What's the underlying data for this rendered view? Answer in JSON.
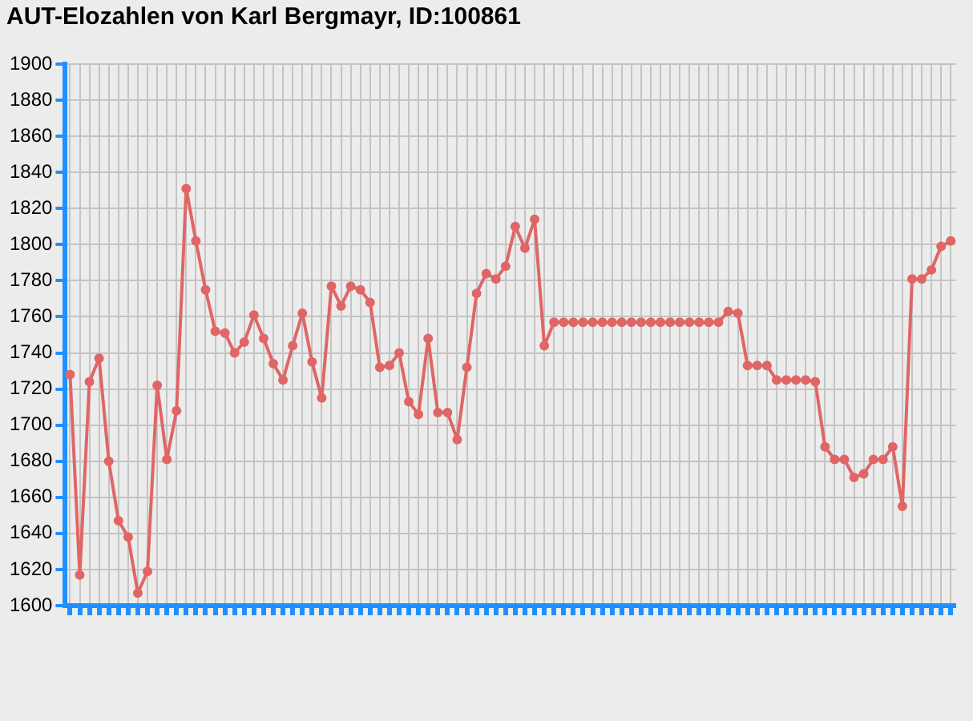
{
  "chart_data": {
    "type": "line",
    "title": "AUT-Elozahlen von Karl Bergmayr, ID:100861",
    "categories": [
      null,
      null,
      null,
      null,
      null,
      null,
      null,
      null,
      null,
      null,
      null,
      null,
      null,
      null,
      null,
      null,
      null,
      null,
      null,
      null,
      null,
      null,
      null,
      null,
      null,
      null,
      null,
      null,
      null,
      null,
      null,
      null,
      null,
      null,
      null,
      null,
      null,
      null,
      null,
      null,
      null,
      null,
      null,
      null,
      null,
      null,
      null,
      null,
      null,
      null,
      null,
      null,
      null,
      null,
      null,
      null,
      null,
      null,
      null,
      null,
      null,
      null,
      null,
      null,
      null,
      null,
      null,
      null,
      null,
      null,
      null,
      null,
      null,
      null,
      null,
      null,
      null,
      null,
      null,
      null,
      null,
      null,
      null,
      null,
      null,
      null,
      null,
      null,
      null,
      null,
      null,
      null
    ],
    "series": [
      {
        "color": "#e06666",
        "values": [
          1728,
          1617,
          1724,
          1737,
          1680,
          1647,
          1638,
          1607,
          1619,
          1722,
          1681,
          1708,
          1831,
          1802,
          1775,
          1752,
          1751,
          1740,
          1746,
          1761,
          1748,
          1734,
          1725,
          1744,
          1762,
          1735,
          1715,
          1777,
          1766,
          1777,
          1775,
          1768,
          1732,
          1733,
          1740,
          1713,
          1706,
          1748,
          1707,
          1707,
          1692,
          1732,
          1773,
          1784,
          1781,
          1788,
          1810,
          1798,
          1814,
          1744,
          1757,
          1757,
          1757,
          1757,
          1757,
          1757,
          1757,
          1757,
          1757,
          1757,
          1757,
          1757,
          1757,
          1757,
          1757,
          1757,
          1757,
          1757,
          1763,
          1762,
          1733,
          1733,
          1733,
          1725,
          1725,
          1725,
          1725,
          1724,
          1688,
          1681,
          1681,
          1671,
          1673,
          1681,
          1681,
          1688,
          1655,
          1781,
          1781,
          1786,
          1799,
          1802
        ]
      }
    ],
    "ylim": [
      1600,
      1900
    ],
    "yticks": [
      1600,
      1620,
      1640,
      1660,
      1680,
      1700,
      1720,
      1740,
      1760,
      1780,
      1800,
      1820,
      1840,
      1860,
      1880,
      1900
    ],
    "grid": true,
    "marker": "circle",
    "line_style": "solid"
  }
}
